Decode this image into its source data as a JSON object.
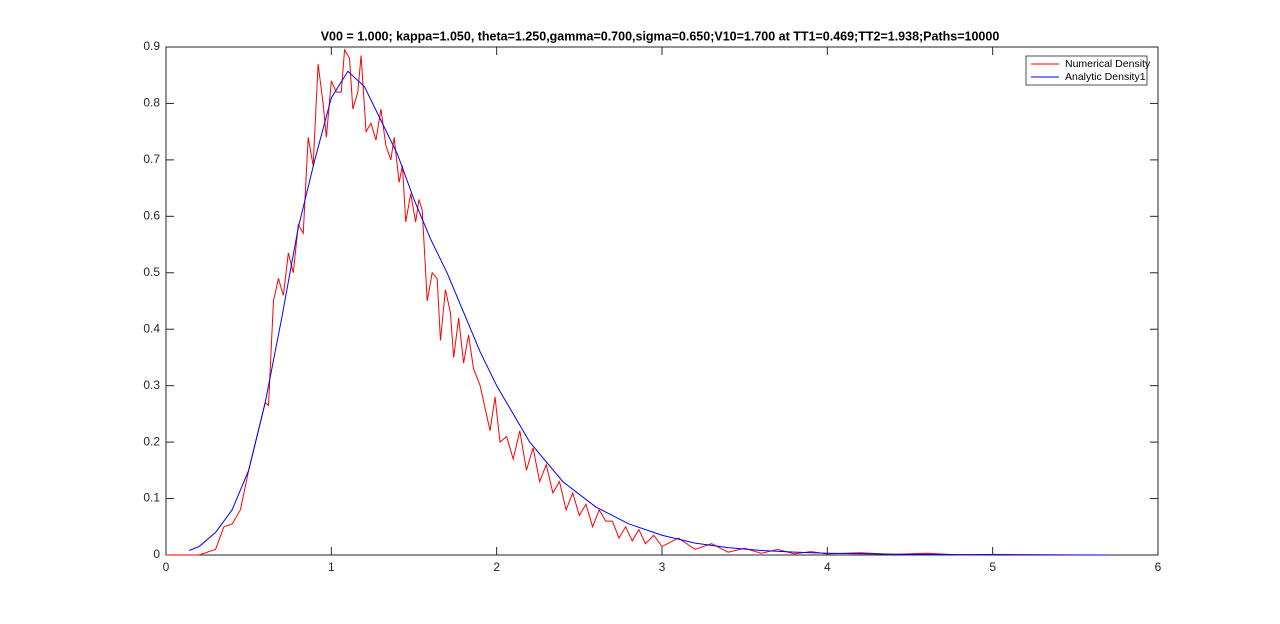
{
  "chart_data": {
    "type": "line",
    "title": "V00 = 1.000; kappa=1.050, theta=1.250,gamma=0.700,sigma=0.650;V10=1.700 at TT1=0.469;TT2=1.938;Paths=10000",
    "xlim": [
      0,
      6
    ],
    "ylim": [
      0,
      0.9
    ],
    "xticks": [
      0,
      1,
      2,
      3,
      4,
      5,
      6
    ],
    "yticks": [
      0,
      0.1,
      0.2,
      0.3,
      0.4,
      0.5,
      0.6,
      0.7,
      0.8,
      0.9
    ],
    "legend": "top-right",
    "series": [
      {
        "name": "Numerical Density",
        "color": "#ff0000",
        "x": [
          0,
          0.1,
          0.2,
          0.25,
          0.3,
          0.35,
          0.4,
          0.45,
          0.5,
          0.55,
          0.6,
          0.62,
          0.65,
          0.68,
          0.71,
          0.74,
          0.77,
          0.8,
          0.83,
          0.86,
          0.89,
          0.92,
          0.95,
          0.97,
          1.0,
          1.03,
          1.06,
          1.08,
          1.11,
          1.13,
          1.16,
          1.18,
          1.21,
          1.24,
          1.27,
          1.3,
          1.33,
          1.36,
          1.38,
          1.41,
          1.43,
          1.45,
          1.48,
          1.51,
          1.53,
          1.55,
          1.58,
          1.61,
          1.64,
          1.66,
          1.69,
          1.72,
          1.74,
          1.77,
          1.8,
          1.83,
          1.86,
          1.9,
          1.93,
          1.96,
          1.99,
          2.02,
          2.06,
          2.1,
          2.14,
          2.18,
          2.22,
          2.26,
          2.3,
          2.34,
          2.38,
          2.42,
          2.46,
          2.5,
          2.54,
          2.58,
          2.62,
          2.66,
          2.7,
          2.74,
          2.78,
          2.82,
          2.86,
          2.9,
          2.95,
          3.0,
          3.1,
          3.2,
          3.3,
          3.4,
          3.5,
          3.6,
          3.7,
          3.8,
          3.9,
          4.0,
          4.2,
          4.4,
          4.6,
          4.8,
          5.0,
          5.5,
          5.7
        ],
        "values": [
          0,
          0,
          0,
          0.005,
          0.01,
          0.05,
          0.055,
          0.08,
          0.15,
          0.21,
          0.27,
          0.265,
          0.45,
          0.49,
          0.46,
          0.535,
          0.5,
          0.585,
          0.57,
          0.74,
          0.69,
          0.87,
          0.8,
          0.74,
          0.84,
          0.82,
          0.82,
          0.895,
          0.88,
          0.79,
          0.82,
          0.885,
          0.75,
          0.765,
          0.735,
          0.79,
          0.725,
          0.7,
          0.74,
          0.66,
          0.69,
          0.59,
          0.64,
          0.59,
          0.63,
          0.61,
          0.45,
          0.5,
          0.49,
          0.38,
          0.47,
          0.43,
          0.35,
          0.42,
          0.34,
          0.39,
          0.33,
          0.3,
          0.26,
          0.22,
          0.28,
          0.2,
          0.21,
          0.17,
          0.22,
          0.15,
          0.19,
          0.13,
          0.16,
          0.11,
          0.13,
          0.08,
          0.11,
          0.07,
          0.09,
          0.05,
          0.08,
          0.06,
          0.06,
          0.03,
          0.05,
          0.025,
          0.045,
          0.02,
          0.035,
          0.015,
          0.03,
          0.01,
          0.02,
          0.005,
          0.012,
          0.003,
          0.01,
          0.002,
          0.006,
          0.002,
          0.004,
          0.001,
          0.003,
          0,
          0.001,
          0,
          0
        ]
      },
      {
        "name": "Analytic Density1",
        "color": "#0000ff",
        "x": [
          0.14,
          0.2,
          0.3,
          0.4,
          0.5,
          0.6,
          0.7,
          0.8,
          0.9,
          1.0,
          1.1,
          1.2,
          1.3,
          1.4,
          1.5,
          1.6,
          1.7,
          1.8,
          1.9,
          2.0,
          2.2,
          2.4,
          2.6,
          2.8,
          3.0,
          3.2,
          3.4,
          3.6,
          3.8,
          4.0,
          4.5,
          5.0,
          5.7
        ],
        "values": [
          0.008,
          0.015,
          0.04,
          0.08,
          0.15,
          0.27,
          0.42,
          0.58,
          0.7,
          0.81,
          0.857,
          0.83,
          0.77,
          0.71,
          0.63,
          0.56,
          0.5,
          0.43,
          0.36,
          0.3,
          0.2,
          0.13,
          0.085,
          0.055,
          0.035,
          0.021,
          0.013,
          0.008,
          0.005,
          0.003,
          0.001,
          0.0004,
          0
        ]
      }
    ]
  }
}
